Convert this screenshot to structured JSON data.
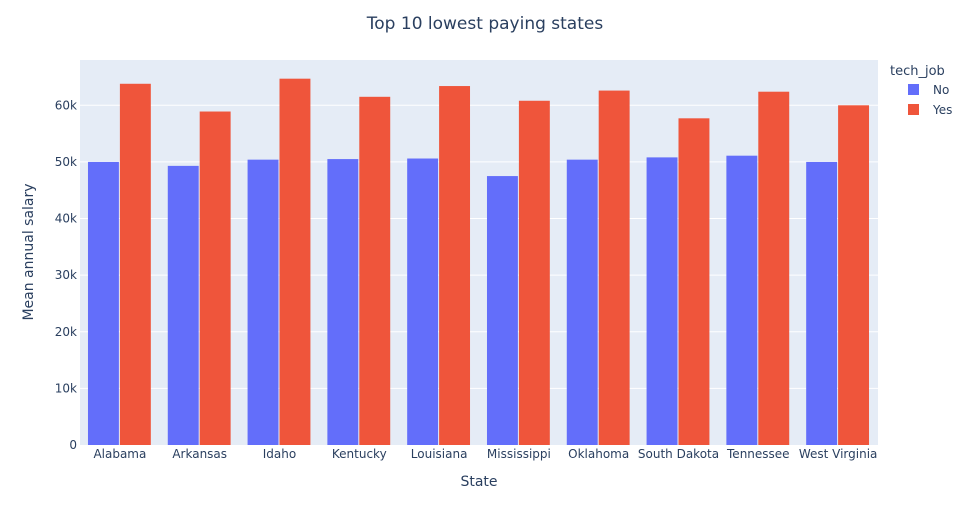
{
  "chart_data": {
    "type": "bar",
    "title": "Top 10 lowest paying states",
    "xlabel": "State",
    "ylabel": "Mean annual salary",
    "categories": [
      "Alabama",
      "Arkansas",
      "Idaho",
      "Kentucky",
      "Louisiana",
      "Mississippi",
      "Oklahoma",
      "South Dakota",
      "Tennessee",
      "West Virginia"
    ],
    "series": [
      {
        "name": "No",
        "color": "#636efa",
        "values": [
          50000,
          49300,
          50400,
          50500,
          50600,
          47500,
          50400,
          50800,
          51100,
          50000
        ]
      },
      {
        "name": "Yes",
        "color": "#ef553b",
        "values": [
          63800,
          58900,
          64700,
          61500,
          63400,
          60800,
          62600,
          57700,
          62400,
          60000
        ]
      }
    ],
    "ylim": [
      0,
      68000
    ],
    "yticks": [
      0,
      10000,
      20000,
      30000,
      40000,
      50000,
      60000
    ],
    "ytick_labels": [
      "0",
      "10k",
      "20k",
      "30k",
      "40k",
      "50k",
      "60k"
    ],
    "legend": {
      "title": "tech_job",
      "placement": "top-right"
    },
    "grid": true,
    "plot_background": "#e5ecf6",
    "text_color": "#2a3f5f"
  }
}
